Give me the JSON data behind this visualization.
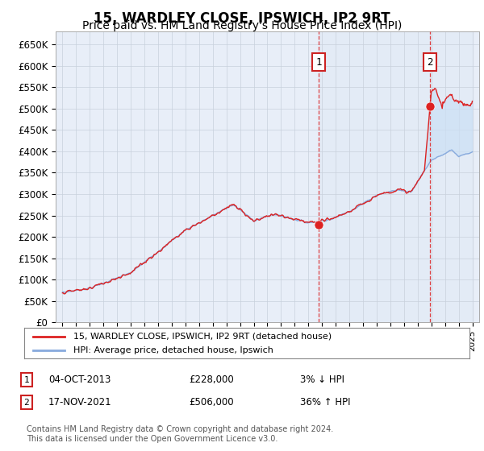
{
  "title": "15, WARDLEY CLOSE, IPSWICH, IP2 9RT",
  "subtitle": "Price paid vs. HM Land Registry's House Price Index (HPI)",
  "title_fontsize": 12,
  "subtitle_fontsize": 10,
  "ylabel_ticks": [
    "£0",
    "£50K",
    "£100K",
    "£150K",
    "£200K",
    "£250K",
    "£300K",
    "£350K",
    "£400K",
    "£450K",
    "£500K",
    "£550K",
    "£600K",
    "£650K"
  ],
  "ytick_values": [
    0,
    50000,
    100000,
    150000,
    200000,
    250000,
    300000,
    350000,
    400000,
    450000,
    500000,
    550000,
    600000,
    650000
  ],
  "ylim": [
    0,
    680000
  ],
  "xlim_start": 1994.5,
  "xlim_end": 2025.5,
  "sale1_year": 2013.75,
  "sale1_price": 228000,
  "sale2_year": 2021.88,
  "sale2_price": 506000,
  "legend_label1": "15, WARDLEY CLOSE, IPSWICH, IP2 9RT (detached house)",
  "legend_label2": "HPI: Average price, detached house, Ipswich",
  "annotation1_num": "1",
  "annotation1_label": "04-OCT-2013",
  "annotation1_price": "£228,000",
  "annotation1_hpi": "3% ↓ HPI",
  "annotation2_num": "2",
  "annotation2_label": "17-NOV-2021",
  "annotation2_price": "£506,000",
  "annotation2_hpi": "36% ↑ HPI",
  "footer": "Contains HM Land Registry data © Crown copyright and database right 2024.\nThis data is licensed under the Open Government Licence v3.0.",
  "line_color_red": "#dd2222",
  "line_color_blue": "#88aadd",
  "fill_color": "#cce0f5",
  "background_color": "#e8eef8",
  "grid_color": "#c8d0dc",
  "sale_dot_color": "#dd2222",
  "dashed_line_color": "#dd2222",
  "box_border_color": "#cc2222"
}
